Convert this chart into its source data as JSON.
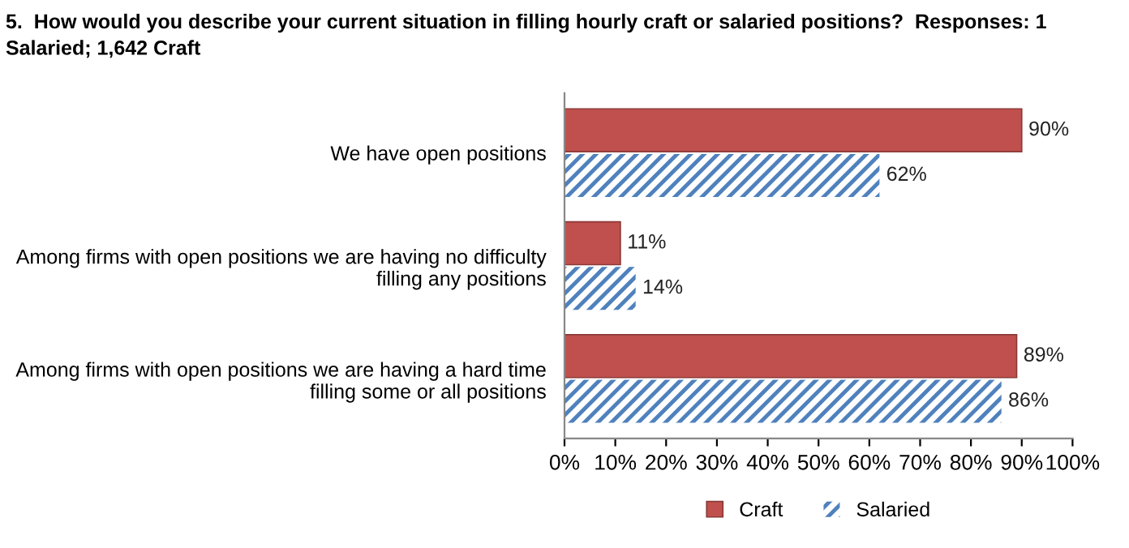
{
  "chart_data": {
    "type": "bar",
    "orientation": "horizontal",
    "title": "5.  How would you describe your current situation in filling hourly craft or salaried positions?  Responses: 1\nSalaried; 1,642 Craft",
    "categories": [
      "We have open positions",
      "Among firms with open positions we are having no difficulty\nfilling any positions",
      "Among firms with open positions we are having a hard time\nfilling some or all positions"
    ],
    "series": [
      {
        "name": "Craft",
        "color": "#c0504d",
        "values": [
          90,
          11,
          89
        ],
        "value_labels": [
          "90%",
          "11%",
          "89%"
        ]
      },
      {
        "name": "Salaried",
        "color": "#4f81bd",
        "values": [
          62,
          14,
          86
        ],
        "value_labels": [
          "62%",
          "14%",
          "86%"
        ]
      }
    ],
    "xlim": [
      0,
      100
    ],
    "xticks": [
      {
        "value": 0,
        "label": "0%"
      },
      {
        "value": 10,
        "label": "10%"
      },
      {
        "value": 20,
        "label": "20%"
      },
      {
        "value": 30,
        "label": "30%"
      },
      {
        "value": 40,
        "label": "40%"
      },
      {
        "value": 50,
        "label": "50%"
      },
      {
        "value": 60,
        "label": "60%"
      },
      {
        "value": 70,
        "label": "70%"
      },
      {
        "value": 80,
        "label": "80%"
      },
      {
        "value": 90,
        "label": "90%"
      },
      {
        "value": 100,
        "label": "100%"
      }
    ],
    "grid": false,
    "legend": "bottom"
  }
}
